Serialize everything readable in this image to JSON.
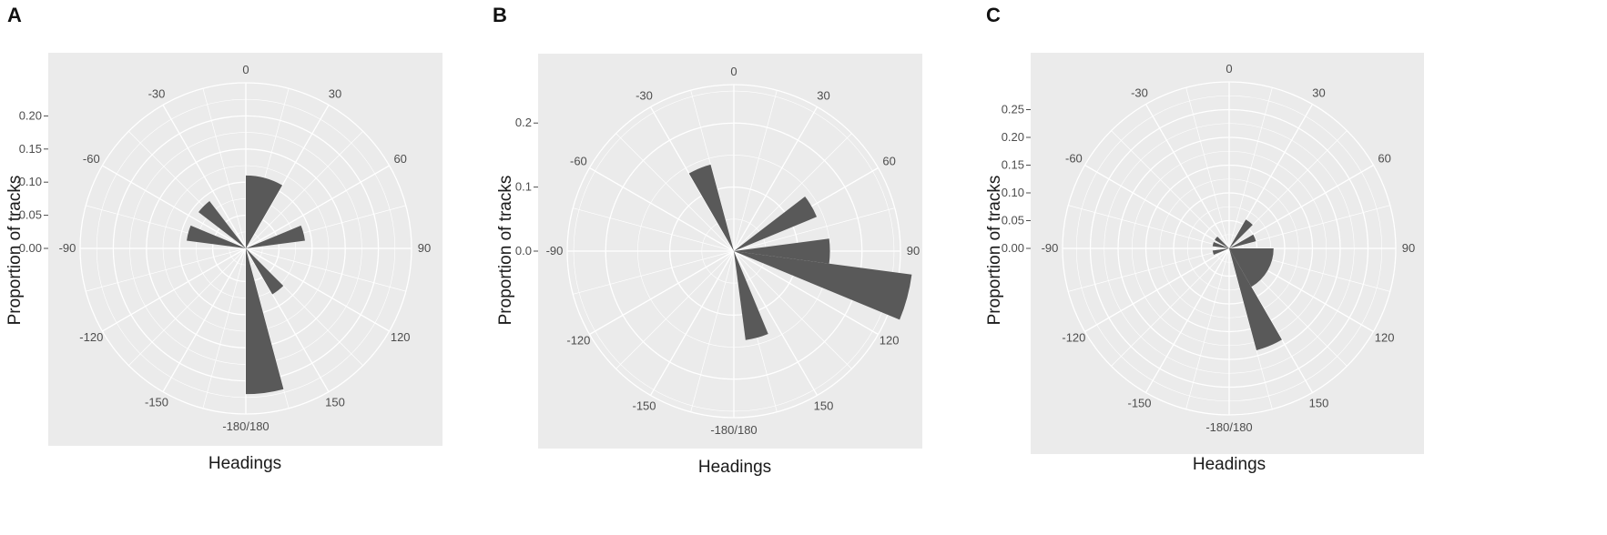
{
  "colors": {
    "panel_bg": "#ebebeb",
    "grid": "#ffffff",
    "bar": "#595959",
    "text": "#4d4d4d"
  },
  "chart_data": [
    {
      "type": "bar",
      "coord": "polar",
      "panel": "A",
      "xlabel": "Headings",
      "ylabel": "Proportion of tracks",
      "heading_labels": [
        "0",
        "30",
        "60",
        "90",
        "120",
        "150",
        "-180/180",
        "-150",
        "-120",
        "-90",
        "-60",
        "-30"
      ],
      "y_ticks": [
        "0.00",
        "0.05",
        "0.10",
        "0.15",
        "0.20"
      ],
      "y_tick_values": [
        0,
        0.05,
        0.1,
        0.15,
        0.2
      ],
      "ylim": [
        0,
        0.25
      ],
      "bin_width_deg": 15,
      "bins": [
        {
          "start": 0,
          "end": 30,
          "value": 0.11
        },
        {
          "start": 67.5,
          "end": 82.5,
          "value": 0.09
        },
        {
          "start": 135,
          "end": 150,
          "value": 0.08
        },
        {
          "start": 165,
          "end": 180,
          "value": 0.22
        },
        {
          "start": -82.5,
          "end": -67.5,
          "value": 0.09
        },
        {
          "start": -52.5,
          "end": -37.5,
          "value": 0.09
        }
      ]
    },
    {
      "type": "bar",
      "coord": "polar",
      "panel": "B",
      "xlabel": "Headings",
      "ylabel": "Proportion of tracks",
      "heading_labels": [
        "0",
        "30",
        "60",
        "90",
        "120",
        "150",
        "-180/180",
        "-150",
        "-120",
        "-90",
        "-60",
        "-30"
      ],
      "y_ticks": [
        "0.0",
        "0.1",
        "0.2"
      ],
      "y_tick_values": [
        0,
        0.1,
        0.2
      ],
      "ylim": [
        0,
        0.26
      ],
      "bin_width_deg": 15,
      "bins": [
        {
          "start": -30,
          "end": -15,
          "value": 0.14
        },
        {
          "start": 52.5,
          "end": 67.5,
          "value": 0.14
        },
        {
          "start": 82.5,
          "end": 90,
          "value": 0.15
        },
        {
          "start": 90,
          "end": 97.5,
          "value": 0.15
        },
        {
          "start": 97.5,
          "end": 112.5,
          "value": 0.28
        },
        {
          "start": 157.5,
          "end": 172.5,
          "value": 0.14
        }
      ]
    },
    {
      "type": "bar",
      "coord": "polar",
      "panel": "C",
      "xlabel": "Headings",
      "ylabel": "Proportion of tracks",
      "heading_labels": [
        "0",
        "30",
        "60",
        "90",
        "120",
        "150",
        "-180/180",
        "-150",
        "-120",
        "-90",
        "-60",
        "-30"
      ],
      "y_ticks": [
        "0.00",
        "0.05",
        "0.10",
        "0.15",
        "0.20",
        "0.25"
      ],
      "y_tick_values": [
        0,
        0.05,
        0.1,
        0.15,
        0.2,
        0.25
      ],
      "ylim": [
        0,
        0.3
      ],
      "bin_width_deg": 15,
      "bins": [
        {
          "start": 30,
          "end": 45,
          "value": 0.06
        },
        {
          "start": 60,
          "end": 75,
          "value": 0.05
        },
        {
          "start": 90,
          "end": 150,
          "value": 0.08
        },
        {
          "start": 150,
          "end": 165,
          "value": 0.19
        },
        {
          "start": -60,
          "end": -45,
          "value": 0.03
        },
        {
          "start": -82.5,
          "end": -67.5,
          "value": 0.03
        },
        {
          "start": -112.5,
          "end": -97.5,
          "value": 0.03
        }
      ]
    }
  ]
}
